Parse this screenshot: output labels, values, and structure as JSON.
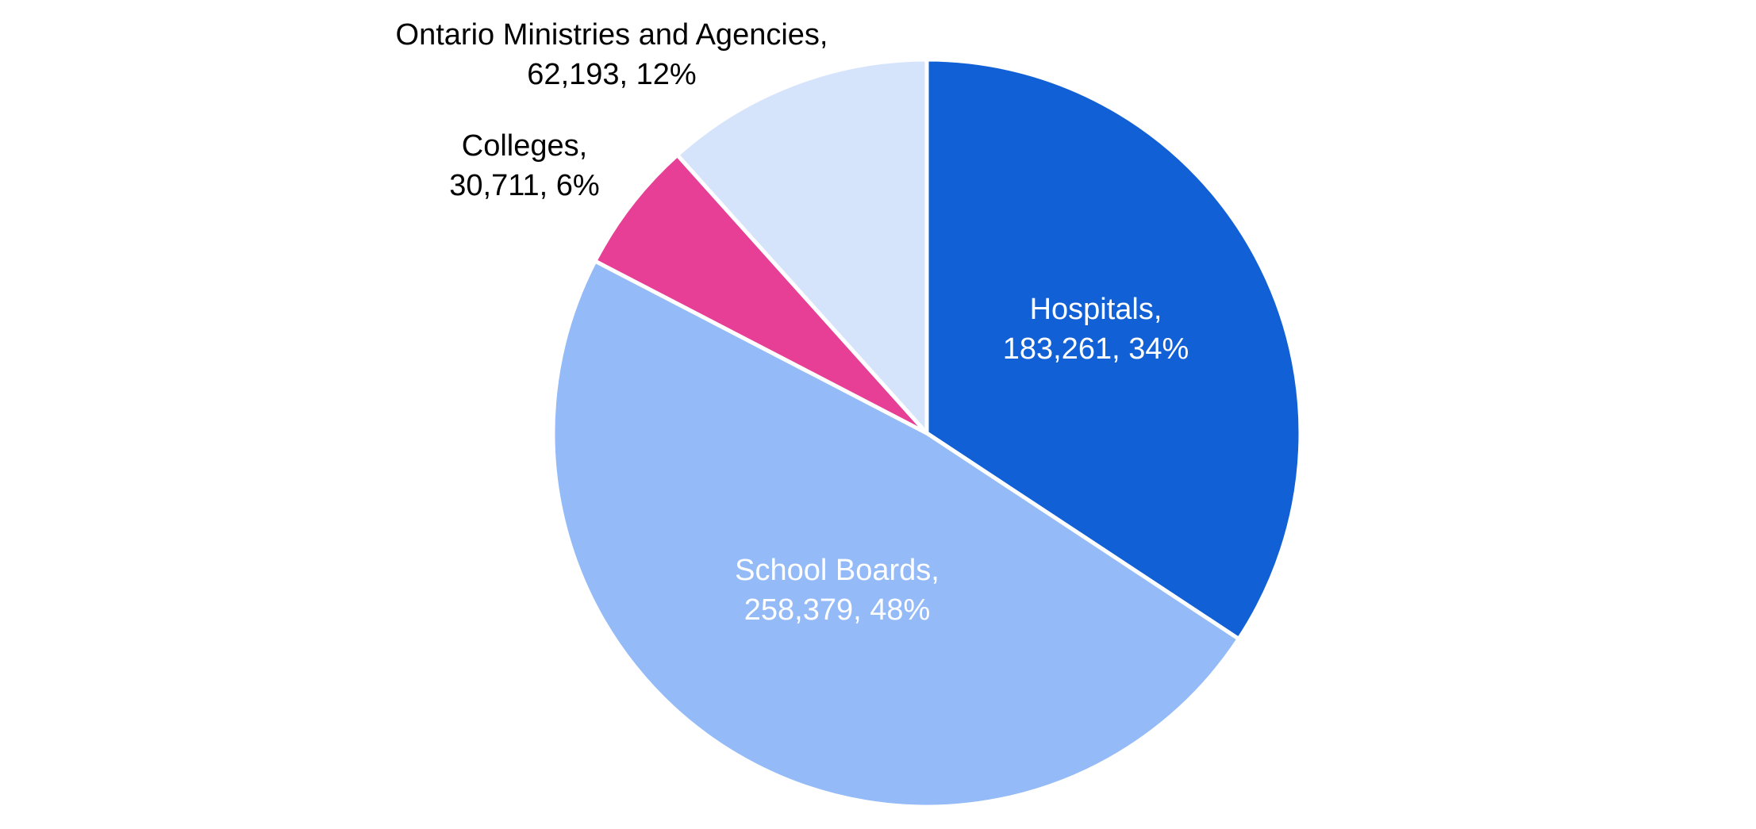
{
  "chart_data": {
    "type": "pie",
    "title": "",
    "slices": [
      {
        "name": "Hospitals",
        "value": 183261,
        "percent": "34%",
        "color": "#1260d6",
        "label_line1": "Hospitals,",
        "label_line2": "183,261, 34%",
        "label_color": "#ffffff"
      },
      {
        "name": "School Boards",
        "value": 258379,
        "percent": "48%",
        "color": "#94bbf7",
        "label_line1": "School Boards,",
        "label_line2": "258,379, 48%",
        "label_color": "#ffffff"
      },
      {
        "name": "Colleges",
        "value": 30711,
        "percent": "6%",
        "color": "#e63f95",
        "label_line1": "Colleges,",
        "label_line2": "30,711, 6%",
        "label_color": "#000000"
      },
      {
        "name": "Ontario Ministries and Agencies",
        "value": 62193,
        "percent": "12%",
        "color": "#d6e4fb",
        "label_line1": "Ontario Ministries and Agencies,",
        "label_line2": "62,193, 12%",
        "label_color": "#000000"
      }
    ],
    "start_angle": "12 o'clock",
    "direction": "clockwise",
    "legend": "none"
  }
}
